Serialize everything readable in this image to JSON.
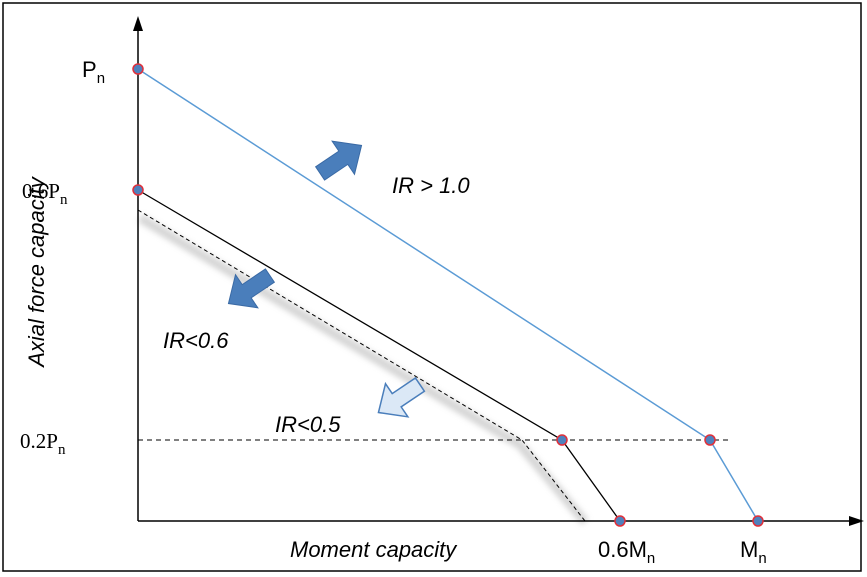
{
  "diagram": {
    "y_axis_label": "Axial force capacity",
    "x_axis_label": "Moment capacity",
    "y_ticks": {
      "pn": {
        "main": "P",
        "sub": "n"
      },
      "p06": {
        "main": "0.6P",
        "sub": "n"
      },
      "p02": {
        "main": "0.2P",
        "sub": "n"
      }
    },
    "x_ticks": {
      "m06": {
        "main": "0.6M",
        "sub": "n"
      },
      "mn": {
        "main": "M",
        "sub": "n"
      }
    },
    "region_labels": {
      "ir_gt_1": "IR > 1.0",
      "ir_lt_06": "IR<0.6",
      "ir_lt_05": "IR<0.5"
    },
    "colors": {
      "full_capacity_line": "#5b9bd5",
      "reduced_line": "#000000",
      "arrow_fill": "#4a7ebb",
      "arrow_light_fill": "#dbe8f6",
      "point_fill": "#4f81bd",
      "point_stroke": "#e0303a"
    },
    "icons": [
      "arrow-up-right-icon",
      "arrow-down-left-icon",
      "arrow-down-left-outline-icon"
    ]
  }
}
